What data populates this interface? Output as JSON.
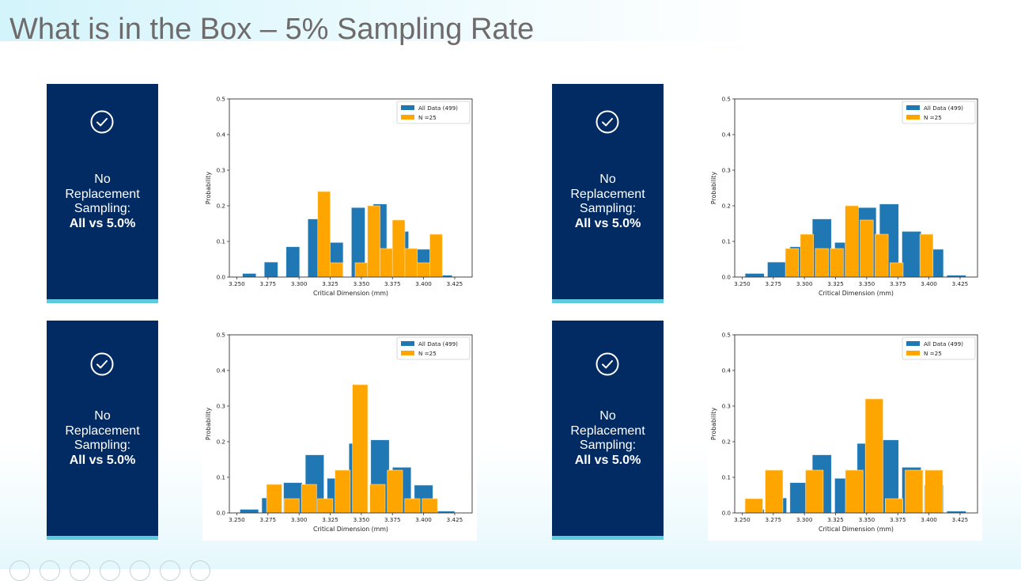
{
  "slide": {
    "title": "What is in the Box – 5% Sampling Rate"
  },
  "panels": [
    {
      "icon": "check-circle-icon",
      "line1": "No",
      "line2": "Replacement",
      "line3": "Sampling:",
      "bold": "All vs 5.0%"
    },
    {
      "icon": "check-circle-icon",
      "line1": "No",
      "line2": "Replacement",
      "line3": "Sampling:",
      "bold": "All vs 5.0%"
    },
    {
      "icon": "check-circle-icon",
      "line1": "No",
      "line2": "Replacement",
      "line3": "Sampling:",
      "bold": "All vs 5.0%"
    },
    {
      "icon": "check-circle-icon",
      "line1": "No",
      "line2": "Replacement",
      "line3": "Sampling:",
      "bold": "All vs 5.0%"
    }
  ],
  "colors": {
    "all_data": "#1f77b4",
    "sample": "#ffa500",
    "panel_bg": "#022b63",
    "panel_stripe": "#5ccbdf",
    "title": "#6f6b6b"
  },
  "slideshow_controls": [
    "previous-icon",
    "pen-icon",
    "grid-icon",
    "zoom-icon",
    "subtitles-icon",
    "pointer-icon",
    "more-icon"
  ],
  "chart_data": [
    {
      "type": "bar",
      "position": "top-left",
      "xlabel": "Critical Dimension (mm)",
      "ylabel": "Probability",
      "xlim": [
        3.244,
        3.439
      ],
      "ylim": [
        0,
        0.5
      ],
      "xticks": [
        "3.250",
        "3.275",
        "3.300",
        "3.325",
        "3.350",
        "3.375",
        "3.400",
        "3.425"
      ],
      "xtick_values": [
        3.25,
        3.275,
        3.3,
        3.325,
        3.35,
        3.375,
        3.4,
        3.425
      ],
      "yticks": [
        "0.0",
        "0.1",
        "0.2",
        "0.3",
        "0.4",
        "0.5"
      ],
      "ytick_values": [
        0,
        0.1,
        0.2,
        0.3,
        0.4,
        0.5
      ],
      "legend": {
        "placement": "top-right",
        "entries": [
          "All Data (499)",
          "N =25"
        ]
      },
      "series": [
        {
          "name": "All Data (499)",
          "bin_width": 0.0175,
          "bar_fraction": 0.62,
          "x": [
            3.26,
            3.2775,
            3.295,
            3.3125,
            3.33,
            3.3475,
            3.365,
            3.3825,
            3.4,
            3.4175
          ],
          "values": [
            0.01,
            0.042,
            0.085,
            0.163,
            0.097,
            0.195,
            0.205,
            0.128,
            0.078,
            0.005
          ]
        },
        {
          "name": "N =25",
          "bin_width": 0.01,
          "bar_fraction": 1.0,
          "x": [
            3.32,
            3.33,
            3.35,
            3.36,
            3.37,
            3.38,
            3.39,
            3.4,
            3.41
          ],
          "values": [
            0.24,
            0.04,
            0.04,
            0.2,
            0.08,
            0.16,
            0.08,
            0.04,
            0.12
          ]
        }
      ]
    },
    {
      "type": "bar",
      "position": "top-right",
      "xlabel": "Critical Dimension (mm)",
      "ylabel": "Probability",
      "xlim": [
        3.244,
        3.439
      ],
      "ylim": [
        0,
        0.5
      ],
      "xticks": [
        "3.250",
        "3.275",
        "3.300",
        "3.325",
        "3.350",
        "3.375",
        "3.400",
        "3.425"
      ],
      "xtick_values": [
        3.25,
        3.275,
        3.3,
        3.325,
        3.35,
        3.375,
        3.4,
        3.425
      ],
      "yticks": [
        "0.0",
        "0.1",
        "0.2",
        "0.3",
        "0.4",
        "0.5"
      ],
      "ytick_values": [
        0,
        0.1,
        0.2,
        0.3,
        0.4,
        0.5
      ],
      "legend": {
        "placement": "top-right",
        "entries": [
          "All Data (499)",
          "N =25"
        ]
      },
      "series": [
        {
          "name": "All Data (499)",
          "bin_width": 0.018,
          "bar_fraction": 0.85,
          "x": [
            3.26,
            3.278,
            3.296,
            3.314,
            3.332,
            3.35,
            3.368,
            3.386,
            3.404,
            3.422
          ],
          "values": [
            0.01,
            0.042,
            0.085,
            0.163,
            0.097,
            0.195,
            0.205,
            0.128,
            0.078,
            0.005
          ]
        },
        {
          "name": "N =25",
          "bin_width": 0.012,
          "bar_fraction": 0.88,
          "x": [
            3.29,
            3.302,
            3.314,
            3.326,
            3.338,
            3.35,
            3.362,
            3.374,
            3.398
          ],
          "values": [
            0.08,
            0.12,
            0.08,
            0.08,
            0.2,
            0.16,
            0.12,
            0.04,
            0.12
          ]
        }
      ]
    },
    {
      "type": "bar",
      "position": "bottom-left",
      "xlabel": "Critical Dimension (mm)",
      "ylabel": "Probability",
      "xlim": [
        3.244,
        3.439
      ],
      "ylim": [
        0,
        0.5
      ],
      "xticks": [
        "3.250",
        "3.275",
        "3.300",
        "3.325",
        "3.350",
        "3.375",
        "3.400",
        "3.425"
      ],
      "xtick_values": [
        3.25,
        3.275,
        3.3,
        3.325,
        3.35,
        3.375,
        3.4,
        3.425
      ],
      "yticks": [
        "0.0",
        "0.1",
        "0.2",
        "0.3",
        "0.4",
        "0.5"
      ],
      "ytick_values": [
        0,
        0.1,
        0.2,
        0.3,
        0.4,
        0.5
      ],
      "legend": {
        "placement": "top-right",
        "entries": [
          "All Data (499)",
          "N =25"
        ]
      },
      "series": [
        {
          "name": "All Data (499)",
          "bin_width": 0.0175,
          "bar_fraction": 0.85,
          "x": [
            3.26,
            3.2775,
            3.295,
            3.3125,
            3.33,
            3.3475,
            3.365,
            3.3825,
            3.4,
            3.4175
          ],
          "values": [
            0.01,
            0.042,
            0.085,
            0.163,
            0.097,
            0.195,
            0.205,
            0.128,
            0.078,
            0.005
          ]
        },
        {
          "name": "N =25",
          "bin_width": 0.0139,
          "bar_fraction": 0.88,
          "x": [
            3.28,
            3.294,
            3.308,
            3.321,
            3.335,
            3.349,
            3.363,
            3.377,
            3.391,
            3.405
          ],
          "values": [
            0.08,
            0.04,
            0.08,
            0.04,
            0.12,
            0.36,
            0.08,
            0.12,
            0.04,
            0.04
          ]
        }
      ]
    },
    {
      "type": "bar",
      "position": "bottom-right",
      "xlabel": "Critical Dimension (mm)",
      "ylabel": "Probability",
      "xlim": [
        3.244,
        3.439
      ],
      "ylim": [
        0,
        0.5
      ],
      "xticks": [
        "3.250",
        "3.275",
        "3.300",
        "3.325",
        "3.350",
        "3.375",
        "3.400",
        "3.425"
      ],
      "xtick_values": [
        3.25,
        3.275,
        3.3,
        3.325,
        3.35,
        3.375,
        3.4,
        3.425
      ],
      "yticks": [
        "0.0",
        "0.1",
        "0.2",
        "0.3",
        "0.4",
        "0.5"
      ],
      "ytick_values": [
        0,
        0.1,
        0.2,
        0.3,
        0.4,
        0.5
      ],
      "legend": {
        "placement": "top-right",
        "entries": [
          "All Data (499)",
          "N =25"
        ]
      },
      "series": [
        {
          "name": "All Data (499)",
          "bin_width": 0.018,
          "bar_fraction": 0.85,
          "x": [
            3.26,
            3.278,
            3.296,
            3.314,
            3.332,
            3.35,
            3.368,
            3.386,
            3.404,
            3.422
          ],
          "values": [
            0.01,
            0.042,
            0.085,
            0.163,
            0.097,
            0.195,
            0.205,
            0.128,
            0.078,
            0.005
          ]
        },
        {
          "name": "N =25",
          "bin_width": 0.0161,
          "bar_fraction": 0.88,
          "x": [
            3.2594,
            3.2756,
            3.308,
            3.34,
            3.356,
            3.372,
            3.388,
            3.404
          ],
          "values": [
            0.04,
            0.12,
            0.12,
            0.12,
            0.32,
            0.04,
            0.12,
            0.12
          ]
        }
      ]
    }
  ]
}
